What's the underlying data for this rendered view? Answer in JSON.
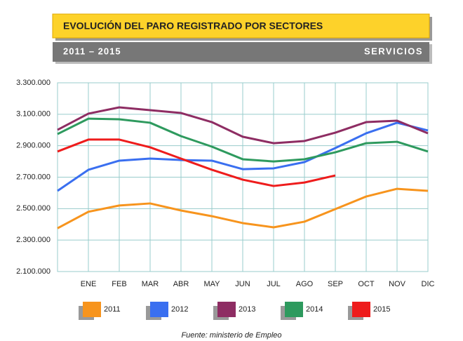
{
  "chart_data": {
    "type": "line",
    "title": "EVOLUCIÓN DEL PARO REGISTRADO POR SECTORES",
    "subtitle": "2011 – 2015",
    "sector": "SERVICIOS",
    "source": "Fuente: ministerio de Empleo",
    "categories": [
      null,
      "ENE",
      "FEB",
      "MAR",
      "ABR",
      "MAY",
      "JUN",
      "JUL",
      "AGO",
      "SEP",
      "OCT",
      "NOV",
      "DIC"
    ],
    "series": [
      {
        "name": "2011",
        "color": "#f7941d",
        "values": [
          2375000,
          2480000,
          2520000,
          2533000,
          2488000,
          2452000,
          2408000,
          2381000,
          2417000,
          2497000,
          2577000,
          2626000,
          2613000
        ]
      },
      {
        "name": "2012",
        "color": "#3a6ff0",
        "values": [
          2613000,
          2747000,
          2805000,
          2818000,
          2809000,
          2805000,
          2751000,
          2756000,
          2796000,
          2885000,
          2979000,
          3046000,
          2997000
        ]
      },
      {
        "name": "2013",
        "color": "#8e2d63",
        "values": [
          3001000,
          3104000,
          3144000,
          3126000,
          3108000,
          3050000,
          2957000,
          2916000,
          2930000,
          2983000,
          3050000,
          3059000,
          2979000
        ]
      },
      {
        "name": "2014",
        "color": "#2e9a5e",
        "values": [
          2974000,
          3072000,
          3068000,
          3046000,
          2961000,
          2894000,
          2814000,
          2800000,
          2814000,
          2858000,
          2916000,
          2925000,
          2863000
        ]
      },
      {
        "name": "2015",
        "color": "#ee1c1c",
        "values": [
          2863000,
          2939000,
          2939000,
          2890000,
          2818000,
          2747000,
          2684000,
          2644000,
          2666000,
          2711000,
          null,
          null,
          null
        ]
      }
    ],
    "ylim": [
      2100000,
      3300000
    ],
    "yticks": [
      {
        "value": 2100000,
        "label": "2.100.000"
      },
      {
        "value": 2300000,
        "label": "2.300.000"
      },
      {
        "value": 2500000,
        "label": "2.500.000"
      },
      {
        "value": 2700000,
        "label": "2.700.000"
      },
      {
        "value": 2900000,
        "label": "2.900.000"
      },
      {
        "value": 3100000,
        "label": "3.100.000"
      },
      {
        "value": 3300000,
        "label": "3.300.000"
      }
    ],
    "grid": true
  }
}
